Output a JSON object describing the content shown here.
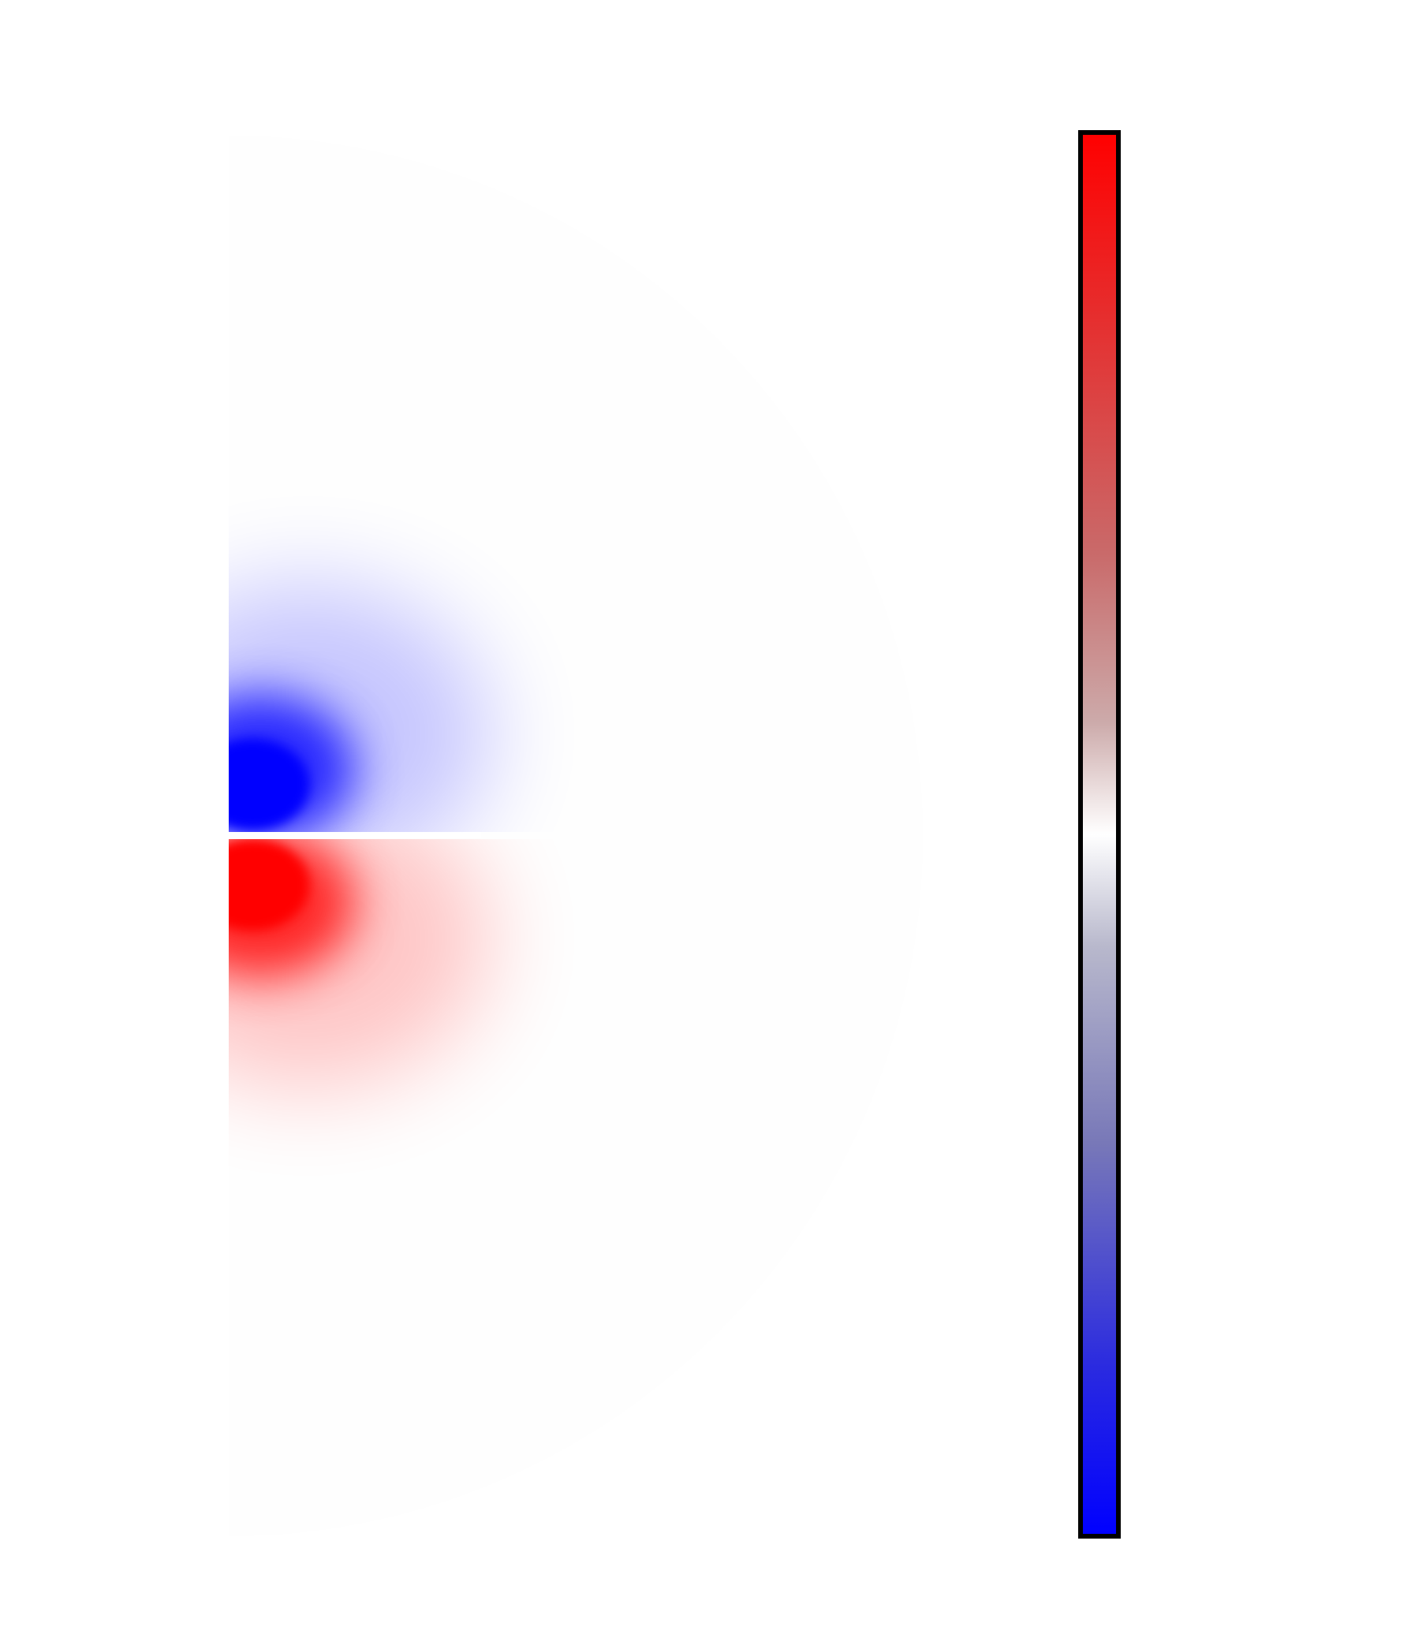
{
  "chart_data": [
    {
      "type": "heatmap",
      "title": "",
      "xlabel": "",
      "ylabel": "",
      "domain_shape": "half-disk",
      "grid": false,
      "lobes": [
        {
          "name": "",
          "sign": "negative",
          "color": "#0000ff",
          "region": "upper"
        },
        {
          "name": "",
          "sign": "positive",
          "color": "#ff0000",
          "region": "lower"
        }
      ]
    },
    {
      "type": "colorbar",
      "orientation": "vertical",
      "tick_labels": [],
      "colors": {
        "max": "#ff0000",
        "mid": "#ffffff",
        "min": "#0000ff"
      }
    }
  ],
  "colors": {
    "background": "#ffffff",
    "domain_fill": "#fefefe",
    "outline": "#000000"
  }
}
